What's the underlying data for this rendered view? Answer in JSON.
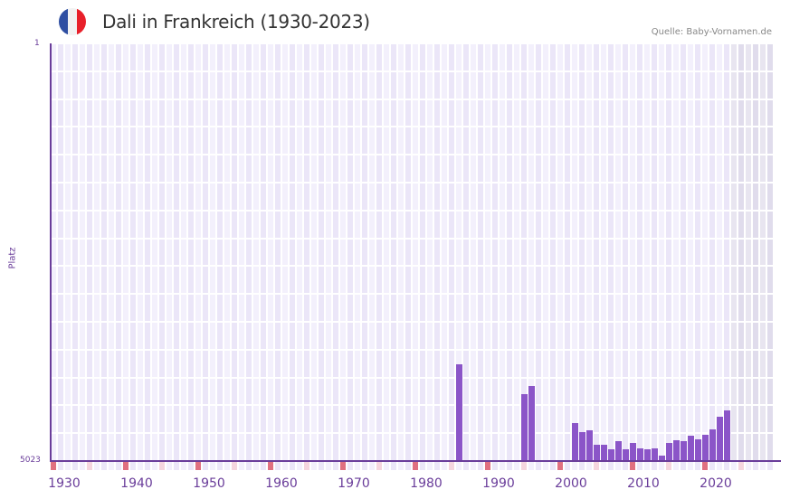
{
  "header": {
    "title": "Dali in Frankreich (1930-2023)",
    "source": "Quelle: Baby-Vornamen.de",
    "flag_colors": [
      "#2f4fa2",
      "#f2f2f2",
      "#e8202a"
    ]
  },
  "axis": {
    "y_label": "Platz",
    "y_top_tick": "1",
    "y_bottom_tick": "5023",
    "x_ticks": [
      "1930",
      "1940",
      "1950",
      "1960",
      "1970",
      "1980",
      "1990",
      "2000",
      "2010",
      "2020"
    ]
  },
  "colors": {
    "bar": "#8b55c8",
    "axis": "#6a3d9a",
    "cell_a": "#f3f0fc",
    "cell_b": "#ebe6f8",
    "future_a": "#e8e5f0",
    "future_b": "#e0dcec",
    "decade_marker": "#e07080",
    "half_decade_marker": "#f5d5de"
  },
  "chart_data": {
    "type": "bar",
    "title": "Dali in Frankreich (1930-2023)",
    "xlabel": "",
    "ylabel": "Platz",
    "y_inverted": true,
    "ylim": [
      1,
      5023
    ],
    "xlim": [
      1928,
      2028
    ],
    "x": [
      1984,
      1993,
      1994,
      2000,
      2001,
      2002,
      2003,
      2004,
      2005,
      2006,
      2007,
      2008,
      2009,
      2010,
      2011,
      2012,
      2013,
      2014,
      2015,
      2016,
      2017,
      2018,
      2019,
      2020,
      2021
    ],
    "values": [
      3860,
      4220,
      4120,
      4570,
      4680,
      4655,
      4830,
      4830,
      4885,
      4785,
      4885,
      4810,
      4875,
      4885,
      4875,
      4960,
      4810,
      4770,
      4780,
      4715,
      4760,
      4705,
      4640,
      4495,
      4410
    ],
    "series": [
      {
        "name": "Dali",
        "values": [
          3860,
          4220,
          4120,
          4570,
          4680,
          4655,
          4830,
          4830,
          4885,
          4785,
          4885,
          4810,
          4875,
          4885,
          4875,
          4960,
          4810,
          4770,
          4780,
          4715,
          4760,
          4705,
          4640,
          4495,
          4410
        ]
      }
    ],
    "grid": true,
    "legend": "none"
  }
}
